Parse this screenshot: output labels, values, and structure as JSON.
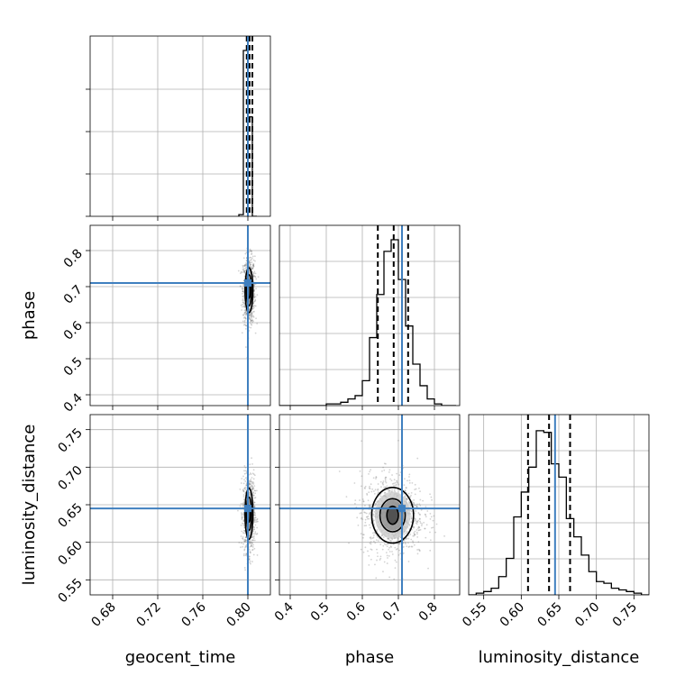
{
  "chart_data": {
    "type": "corner",
    "parameters": [
      "geocent_time",
      "phase",
      "luminosity_distance"
    ],
    "axis_labels": [
      "geocent_time",
      "phase",
      "luminosity_distance"
    ],
    "ranges": {
      "geocent_time": [
        0.66,
        0.82
      ],
      "phase": [
        0.37,
        0.87
      ],
      "luminosity_distance": [
        0.53,
        0.77
      ]
    },
    "ticks": {
      "geocent_time": [
        "0.68",
        "0.72",
        "0.76",
        "0.80"
      ],
      "phase": [
        "0.4",
        "0.5",
        "0.6",
        "0.7",
        "0.8"
      ],
      "luminosity_distance": [
        "0.55",
        "0.60",
        "0.65",
        "0.70",
        "0.75"
      ]
    },
    "truths": {
      "geocent_time": 0.8,
      "phase": 0.71,
      "luminosity_distance": 0.645
    },
    "quantiles": {
      "geocent_time": [
        0.799,
        0.8015,
        0.804
      ],
      "phase": [
        0.643,
        0.687,
        0.727
      ],
      "luminosity_distance": [
        0.609,
        0.637,
        0.665
      ]
    },
    "histograms": {
      "geocent_time": {
        "edges": [
          0.792,
          0.796,
          0.8,
          0.804,
          0.808
        ],
        "counts": [
          0.01,
          1.0,
          0.6,
          0.0
        ]
      },
      "phase": {
        "edges": [
          0.34,
          0.36,
          0.38,
          0.4,
          0.42,
          0.44,
          0.46,
          0.48,
          0.5,
          0.52,
          0.54,
          0.56,
          0.58,
          0.6,
          0.62,
          0.64,
          0.66,
          0.68,
          0.7,
          0.72,
          0.74,
          0.76,
          0.78,
          0.8,
          0.82,
          0.84,
          0.86
        ],
        "counts": [
          0,
          0,
          0,
          0,
          0,
          0,
          0,
          0,
          0.01,
          0.01,
          0.02,
          0.04,
          0.06,
          0.15,
          0.41,
          0.67,
          0.93,
          1.0,
          0.76,
          0.48,
          0.25,
          0.12,
          0.04,
          0.01,
          0,
          0
        ]
      },
      "luminosity_distance": {
        "edges": [
          0.53,
          0.54,
          0.55,
          0.56,
          0.57,
          0.58,
          0.59,
          0.6,
          0.61,
          0.62,
          0.63,
          0.64,
          0.65,
          0.66,
          0.67,
          0.68,
          0.69,
          0.7,
          0.71,
          0.72,
          0.73,
          0.74,
          0.75,
          0.76,
          0.77
        ],
        "counts": [
          0,
          0.01,
          0.02,
          0.04,
          0.11,
          0.22,
          0.47,
          0.62,
          0.77,
          0.99,
          0.98,
          0.79,
          0.71,
          0.46,
          0.35,
          0.24,
          0.14,
          0.08,
          0.07,
          0.04,
          0.03,
          0.02,
          0.01,
          0.0
        ]
      }
    },
    "contours_2d": [
      {
        "x": "geocent_time",
        "y": "phase",
        "center": [
          0.801,
          0.69
        ],
        "levels": [
          {
            "sx": 0.0012,
            "sy": 0.022
          },
          {
            "sx": 0.0023,
            "sy": 0.043
          },
          {
            "sx": 0.0035,
            "sy": 0.062
          }
        ]
      },
      {
        "x": "geocent_time",
        "y": "luminosity_distance",
        "center": [
          0.801,
          0.638
        ],
        "levels": [
          {
            "sx": 0.0012,
            "sy": 0.011
          },
          {
            "sx": 0.0023,
            "sy": 0.022
          },
          {
            "sx": 0.0035,
            "sy": 0.034
          }
        ]
      },
      {
        "x": "phase",
        "y": "luminosity_distance",
        "center": [
          0.684,
          0.636
        ],
        "levels": [
          {
            "sx": 0.016,
            "sy": 0.012
          },
          {
            "sx": 0.035,
            "sy": 0.022
          },
          {
            "sx": 0.058,
            "sy": 0.037
          }
        ]
      }
    ]
  },
  "colors": {
    "truth": "#3f7fbf",
    "grid": "#b0b0b0",
    "samples": "#808080"
  }
}
